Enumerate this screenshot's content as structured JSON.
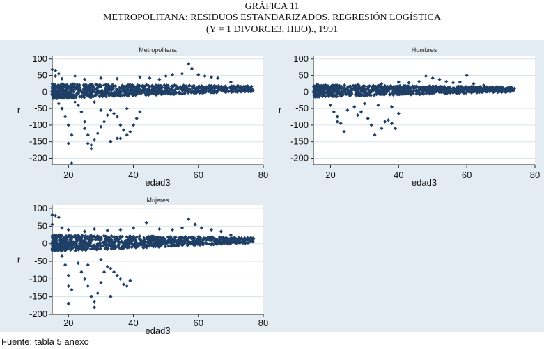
{
  "header": {
    "title_line1": "GRÁFICA 11",
    "title_line2": "METROPOLITANA: RESIDUOS ESTANDARIZADOS. REGRESIÓN LOGÍSTICA",
    "title_line3": "(Y = 1 DIVORCE3, HIJO)., 1991"
  },
  "footer": {
    "source": "Fuente: tabla 5 anexo"
  },
  "colors": {
    "marker": "#1f3f66",
    "panel_bg": "#e3ecf2",
    "plot_bg": "#ffffff",
    "grid": "#d8e3ea"
  },
  "chart_data": [
    {
      "type": "scatter",
      "title": "Metropolitana",
      "xlabel": "edad3",
      "ylabel": "r",
      "xlim": [
        15,
        80
      ],
      "ylim": [
        -220,
        110
      ],
      "xticks": [
        "20",
        "40",
        "60",
        "80"
      ],
      "xtick_values": [
        20,
        40,
        60,
        80
      ],
      "yticks": [
        "100",
        "50",
        "0",
        "-50",
        "-100",
        "-150",
        "-200"
      ],
      "ytick_values": [
        100,
        50,
        0,
        -50,
        -100,
        -150,
        -200
      ],
      "grid": true,
      "band": {
        "x_range": [
          15,
          77
        ],
        "start_y": [
          -20,
          25
        ],
        "end_y": [
          2,
          18
        ]
      },
      "points": [
        [
          15,
          68
        ],
        [
          16,
          65
        ],
        [
          17,
          55
        ],
        [
          16,
          48
        ],
        [
          18,
          40
        ],
        [
          22,
          48
        ],
        [
          25,
          38
        ],
        [
          30,
          42
        ],
        [
          35,
          40
        ],
        [
          42,
          45
        ],
        [
          45,
          42
        ],
        [
          48,
          38
        ],
        [
          50,
          48
        ],
        [
          52,
          52
        ],
        [
          55,
          55
        ],
        [
          57,
          85
        ],
        [
          58,
          70
        ],
        [
          60,
          52
        ],
        [
          62,
          48
        ],
        [
          64,
          45
        ],
        [
          66,
          42
        ],
        [
          70,
          30
        ],
        [
          75,
          18
        ],
        [
          17,
          -35
        ],
        [
          18,
          -50
        ],
        [
          19,
          -75
        ],
        [
          20,
          -100
        ],
        [
          21,
          -130
        ],
        [
          20,
          -155
        ],
        [
          21,
          -215
        ],
        [
          23,
          -40
        ],
        [
          24,
          -60
        ],
        [
          25,
          -90
        ],
        [
          25,
          -110
        ],
        [
          26,
          -130
        ],
        [
          26,
          -155
        ],
        [
          27,
          -160
        ],
        [
          27,
          -172
        ],
        [
          28,
          -145
        ],
        [
          29,
          -125
        ],
        [
          30,
          -105
        ],
        [
          31,
          -90
        ],
        [
          32,
          -70
        ],
        [
          33,
          -55
        ],
        [
          34,
          -65
        ],
        [
          35,
          -75
        ],
        [
          36,
          -100
        ],
        [
          37,
          -115
        ],
        [
          38,
          -130
        ],
        [
          33,
          -150
        ],
        [
          35,
          -140
        ],
        [
          36,
          -140
        ],
        [
          39,
          -120
        ],
        [
          40,
          -100
        ],
        [
          41,
          -80
        ],
        [
          42,
          -60
        ],
        [
          38,
          -50
        ],
        [
          30,
          -55
        ],
        [
          22,
          -30
        ],
        [
          28,
          -30
        ]
      ]
    },
    {
      "type": "scatter",
      "title": "Hombres",
      "xlabel": "edad3",
      "ylabel": "r",
      "xlim": [
        15,
        80
      ],
      "ylim": [
        -220,
        110
      ],
      "xticks": [
        "20",
        "40",
        "60",
        "80"
      ],
      "xtick_values": [
        20,
        40,
        60,
        80
      ],
      "yticks": [
        "100",
        "50",
        "0",
        "-50",
        "-100",
        "-150",
        "-200"
      ],
      "ytick_values": [
        100,
        50,
        0,
        -50,
        -100,
        -150,
        -200
      ],
      "grid": true,
      "band": {
        "x_range": [
          15,
          74
        ],
        "start_y": [
          -15,
          22
        ],
        "end_y": [
          0,
          15
        ]
      },
      "points": [
        [
          16,
          22
        ],
        [
          18,
          18
        ],
        [
          22,
          20
        ],
        [
          28,
          22
        ],
        [
          35,
          25
        ],
        [
          40,
          30
        ],
        [
          43,
          28
        ],
        [
          46,
          32
        ],
        [
          48,
          48
        ],
        [
          50,
          42
        ],
        [
          52,
          38
        ],
        [
          54,
          32
        ],
        [
          56,
          28
        ],
        [
          58,
          30
        ],
        [
          60,
          50
        ],
        [
          62,
          25
        ],
        [
          65,
          20
        ],
        [
          70,
          15
        ],
        [
          73,
          10
        ],
        [
          20,
          -40
        ],
        [
          21,
          -60
        ],
        [
          22,
          -75
        ],
        [
          23,
          -95
        ],
        [
          24,
          -120
        ],
        [
          22,
          -90
        ],
        [
          25,
          -55
        ],
        [
          27,
          -45
        ],
        [
          28,
          -70
        ],
        [
          29,
          -60
        ],
        [
          31,
          -80
        ],
        [
          32,
          -100
        ],
        [
          33,
          -130
        ],
        [
          35,
          -110
        ],
        [
          36,
          -90
        ],
        [
          37,
          -85
        ],
        [
          38,
          -95
        ],
        [
          39,
          -110
        ],
        [
          40,
          -65
        ],
        [
          30,
          -35
        ],
        [
          34,
          -40
        ],
        [
          38,
          -45
        ]
      ]
    },
    {
      "type": "scatter",
      "title": "Mujeres",
      "xlabel": "edad3",
      "ylabel": "r",
      "xlim": [
        15,
        80
      ],
      "ylim": [
        -200,
        110
      ],
      "xticks": [
        "20",
        "40",
        "60",
        "80"
      ],
      "xtick_values": [
        20,
        40,
        60,
        80
      ],
      "yticks": [
        "100",
        "50",
        "0",
        "-50",
        "-100",
        "-150",
        "-200"
      ],
      "ytick_values": [
        100,
        50,
        0,
        -50,
        -100,
        -150,
        -200
      ],
      "grid": true,
      "band": {
        "x_range": [
          15,
          77
        ],
        "start_y": [
          -22,
          25
        ],
        "end_y": [
          2,
          18
        ]
      },
      "points": [
        [
          15,
          82
        ],
        [
          16,
          80
        ],
        [
          17,
          75
        ],
        [
          15,
          55
        ],
        [
          18,
          45
        ],
        [
          20,
          40
        ],
        [
          25,
          35
        ],
        [
          28,
          42
        ],
        [
          32,
          38
        ],
        [
          36,
          40
        ],
        [
          40,
          45
        ],
        [
          44,
          60
        ],
        [
          48,
          42
        ],
        [
          52,
          40
        ],
        [
          55,
          45
        ],
        [
          57,
          70
        ],
        [
          59,
          55
        ],
        [
          61,
          45
        ],
        [
          64,
          40
        ],
        [
          67,
          35
        ],
        [
          70,
          25
        ],
        [
          18,
          -35
        ],
        [
          19,
          -60
        ],
        [
          20,
          -90
        ],
        [
          20,
          -120
        ],
        [
          21,
          -130
        ],
        [
          20,
          -170
        ],
        [
          23,
          -55
        ],
        [
          24,
          -80
        ],
        [
          25,
          -100
        ],
        [
          26,
          -120
        ],
        [
          27,
          -150
        ],
        [
          28,
          -165
        ],
        [
          28,
          -180
        ],
        [
          29,
          -140
        ],
        [
          30,
          -110
        ],
        [
          31,
          -80
        ],
        [
          32,
          -65
        ],
        [
          33,
          -70
        ],
        [
          34,
          -80
        ],
        [
          35,
          -90
        ],
        [
          36,
          -100
        ],
        [
          37,
          -115
        ],
        [
          38,
          -120
        ],
        [
          39,
          -105
        ],
        [
          33,
          -150
        ],
        [
          26,
          -60
        ],
        [
          30,
          -45
        ]
      ]
    }
  ]
}
